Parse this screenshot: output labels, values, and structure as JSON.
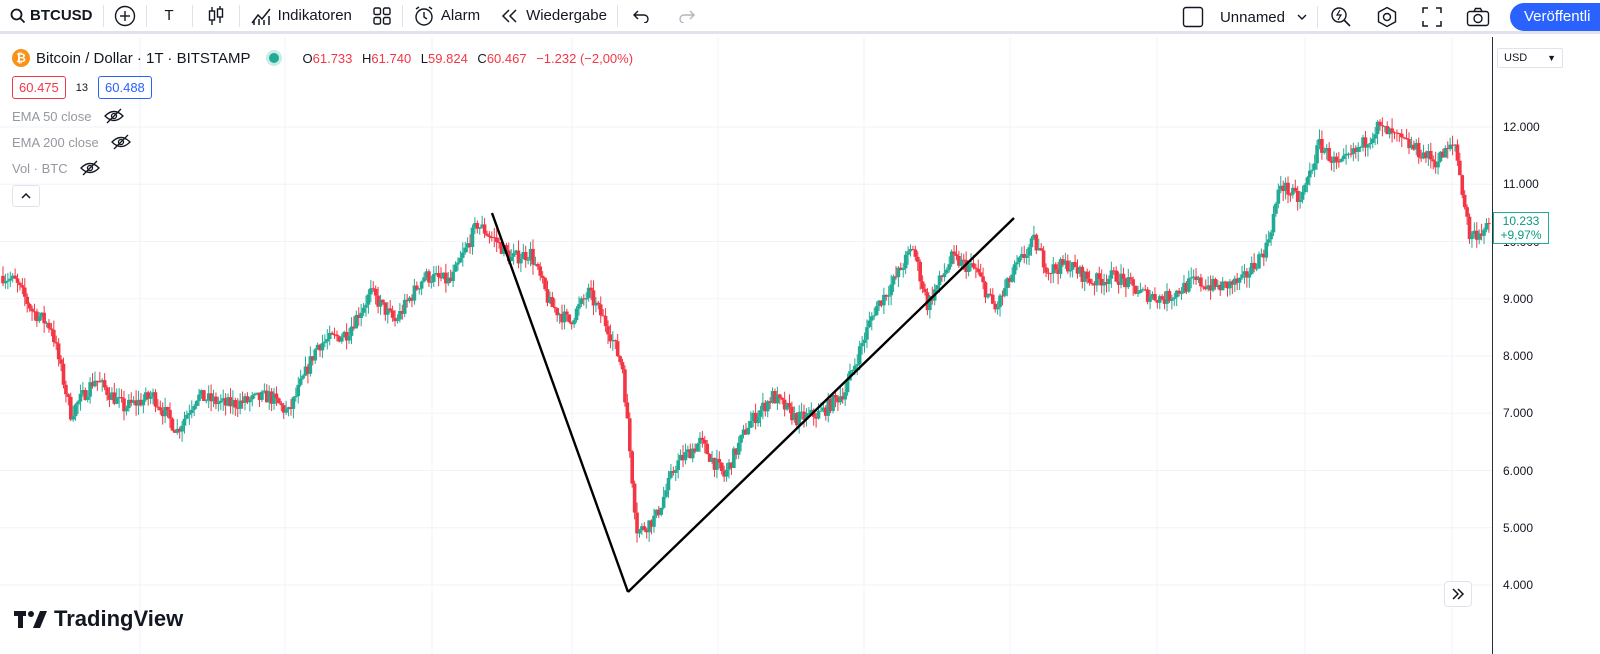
{
  "toolbar": {
    "symbol": "BTCUSD",
    "text_tool": "T",
    "indicators_label": "Indikatoren",
    "alarm_label": "Alarm",
    "replay_label": "Wiedergabe",
    "layout_name": "Unnamed",
    "publish_label": "Veröffentli"
  },
  "legend": {
    "title": "Bitcoin / Dollar · 1T · BITSTAMP",
    "o_label": "O",
    "o_value": "61.733",
    "h_label": "H",
    "h_value": "61.740",
    "l_label": "L",
    "l_value": "59.824",
    "c_label": "C",
    "c_value": "60.467",
    "change": "−1.232 (−2,00%)",
    "bid": "60.475",
    "spread": "13",
    "ask": "60.488",
    "indicators": [
      "EMA 50 close",
      "EMA 200 close",
      "Vol · BTC"
    ]
  },
  "price_scale": {
    "currency": "USD",
    "last_price": "10.233",
    "last_change": "+9,97%"
  },
  "colors": {
    "up": "#22ab94",
    "down": "#f23645",
    "accent": "#2962ff",
    "grid": "#f0f3fa",
    "drawing": "#000000"
  },
  "logo_text": "TradingView",
  "chart_data": {
    "type": "candlestick",
    "y_ticks": [
      "12.000",
      "11.000",
      "10.000",
      "9.000",
      "8.000",
      "7.000",
      "6.000",
      "5.000",
      "4.000"
    ],
    "ylim": [
      3700,
      12900
    ],
    "candles_count": 250,
    "anchors": [
      [
        0,
        9400
      ],
      [
        5,
        9300
      ],
      [
        12,
        8800
      ],
      [
        20,
        8500
      ],
      [
        28,
        7000
      ],
      [
        38,
        7600
      ],
      [
        50,
        7100
      ],
      [
        62,
        7300
      ],
      [
        72,
        6700
      ],
      [
        80,
        7300
      ],
      [
        92,
        7150
      ],
      [
        100,
        7200
      ],
      [
        110,
        7300
      ],
      [
        118,
        7000
      ],
      [
        130,
        8200
      ],
      [
        142,
        8400
      ],
      [
        152,
        9100
      ],
      [
        162,
        8600
      ],
      [
        174,
        9400
      ],
      [
        185,
        9300
      ],
      [
        196,
        10300
      ],
      [
        204,
        10000
      ],
      [
        210,
        9700
      ],
      [
        218,
        9800
      ],
      [
        226,
        8900
      ],
      [
        234,
        8600
      ],
      [
        242,
        9100
      ],
      [
        250,
        8500
      ],
      [
        256,
        7800
      ],
      [
        262,
        4900
      ],
      [
        270,
        5200
      ],
      [
        278,
        6100
      ],
      [
        288,
        6500
      ],
      [
        298,
        5900
      ],
      [
        308,
        6800
      ],
      [
        318,
        7300
      ],
      [
        328,
        6900
      ],
      [
        338,
        7000
      ],
      [
        348,
        7400
      ],
      [
        360,
        8800
      ],
      [
        368,
        9300
      ],
      [
        376,
        9900
      ],
      [
        382,
        8900
      ],
      [
        392,
        9700
      ],
      [
        402,
        9500
      ],
      [
        410,
        8800
      ],
      [
        418,
        9500
      ],
      [
        426,
        10000
      ],
      [
        432,
        9500
      ],
      [
        440,
        9600
      ],
      [
        450,
        9300
      ],
      [
        460,
        9400
      ],
      [
        470,
        9100
      ],
      [
        480,
        9000
      ],
      [
        492,
        9300
      ],
      [
        502,
        9200
      ],
      [
        512,
        9300
      ],
      [
        522,
        9900
      ],
      [
        528,
        11000
      ],
      [
        536,
        10700
      ],
      [
        544,
        11700
      ],
      [
        552,
        11300
      ],
      [
        560,
        11600
      ],
      [
        568,
        12000
      ],
      [
        576,
        11800
      ],
      [
        584,
        11600
      ],
      [
        592,
        11400
      ],
      [
        600,
        11700
      ],
      [
        606,
        10100
      ],
      [
        614,
        10233
      ]
    ],
    "drawings": [
      {
        "type": "line",
        "points": [
          [
            "t≈196",
            10500
          ],
          [
            "t≈262",
            3900
          ]
        ]
      },
      {
        "type": "line",
        "points": [
          [
            "t≈262",
            3900
          ],
          [
            "t≈420",
            10400
          ]
        ]
      }
    ]
  }
}
